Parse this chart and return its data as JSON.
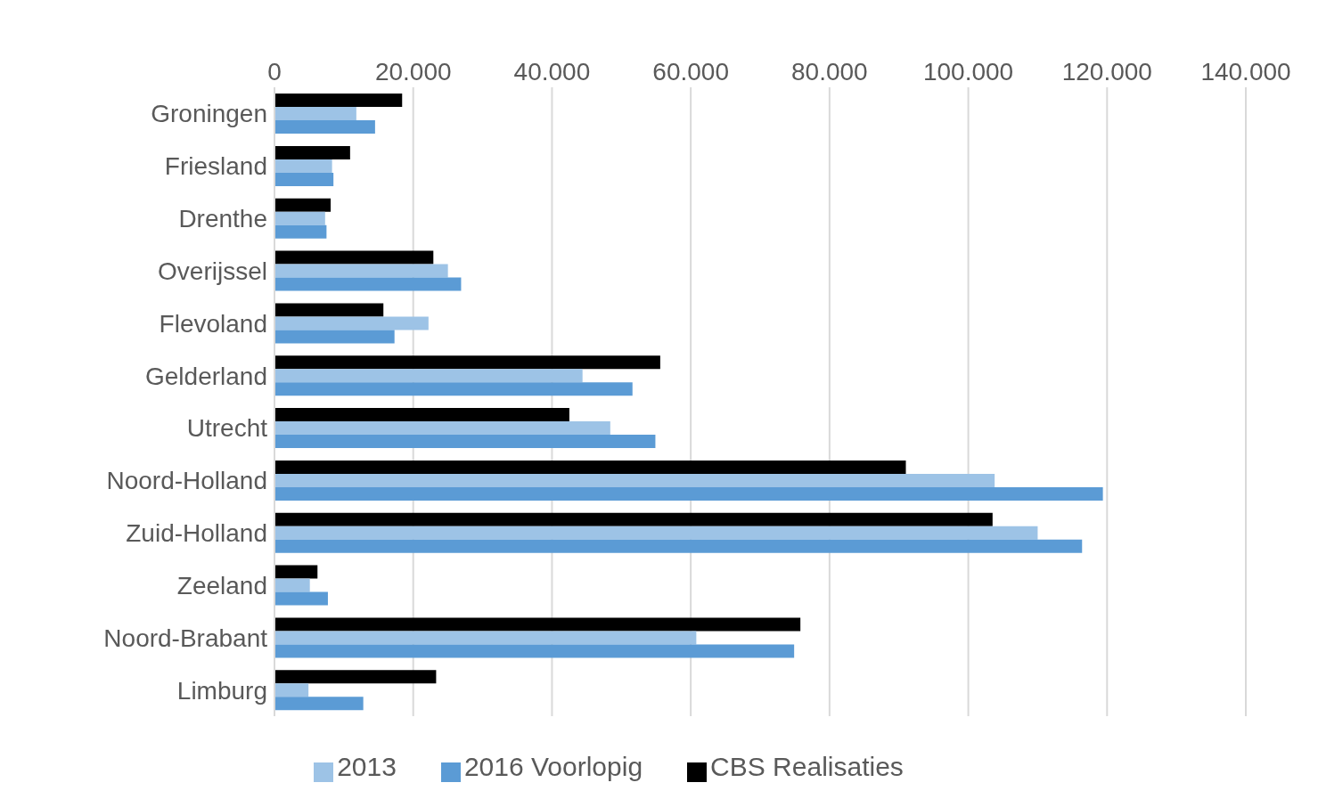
{
  "chart_data": {
    "type": "bar",
    "orientation": "horizontal",
    "categories": [
      "Groningen",
      "Friesland",
      "Drenthe",
      "Overijssel",
      "Flevoland",
      "Gelderland",
      "Utrecht",
      "Noord-Holland",
      "Zuid-Holland",
      "Zeeland",
      "Noord-Brabant",
      "Limburg"
    ],
    "series": [
      {
        "name": "CBS Realisaties",
        "color": "#000000",
        "values": [
          18400,
          10900,
          8100,
          22900,
          15700,
          55600,
          42500,
          91000,
          103500,
          6200,
          75800,
          23300
        ]
      },
      {
        "name": "2013",
        "color": "#9dc3e6",
        "values": [
          11800,
          8300,
          7300,
          25000,
          22200,
          44400,
          48400,
          103800,
          110000,
          5100,
          60800,
          4900
        ]
      },
      {
        "name": "2016 Voorlopig",
        "color": "#5b9bd5",
        "values": [
          14500,
          8500,
          7500,
          26900,
          17300,
          51600,
          54900,
          119400,
          116400,
          7700,
          74900,
          12800
        ]
      }
    ],
    "xlim": [
      0,
      140000
    ],
    "xticks": [
      0,
      {
        "value": 20000,
        "label": "20.000"
      },
      {
        "value": 40000,
        "label": "40.000"
      },
      {
        "value": 60000,
        "label": "60.000"
      },
      {
        "value": 80000,
        "label": "80.000"
      },
      {
        "value": 100000,
        "label": "100.000"
      },
      {
        "value": 120000,
        "label": "120.000"
      },
      {
        "value": 140000,
        "label": "140.000"
      }
    ],
    "grid": "x",
    "legend": "bottom"
  }
}
